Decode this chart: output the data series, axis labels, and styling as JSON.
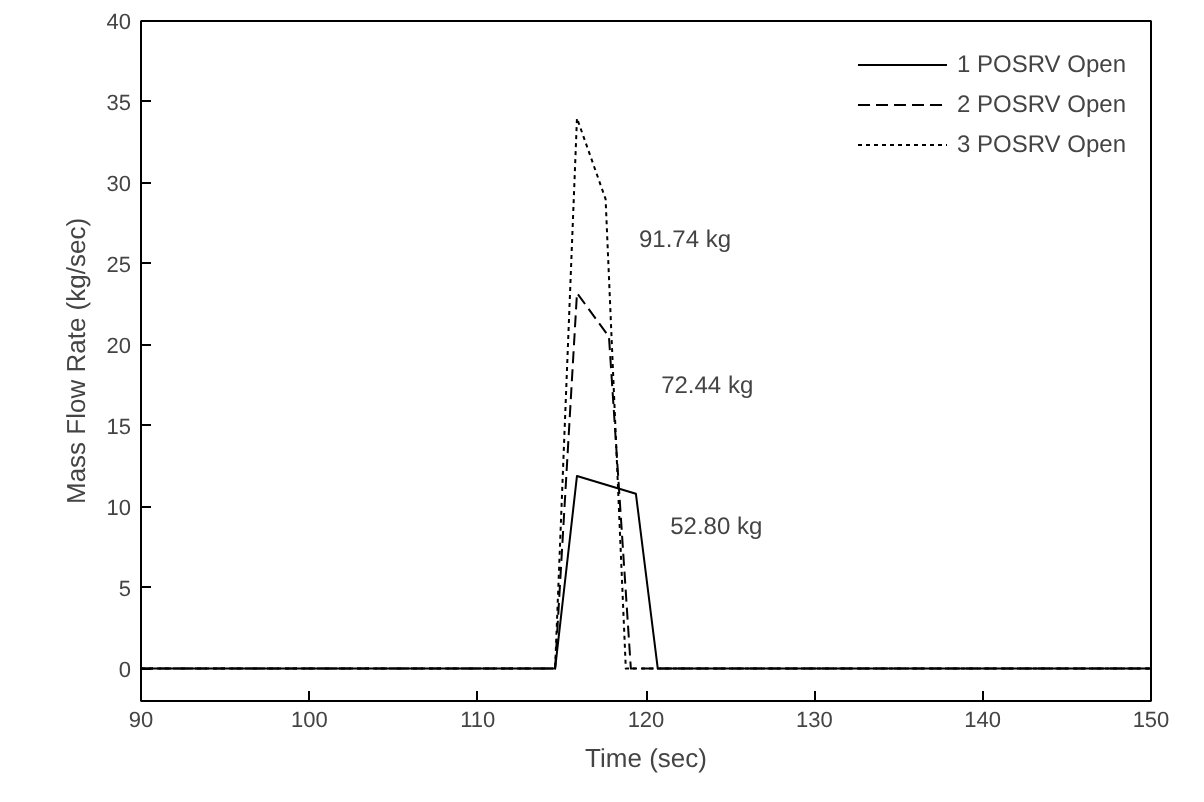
{
  "chart_data": {
    "type": "line",
    "xlabel": "Time (sec)",
    "ylabel": "Mass Flow Rate (kg/sec)",
    "xlim": [
      90,
      150
    ],
    "ylim": [
      -2,
      40
    ],
    "xticks": [
      90,
      100,
      110,
      120,
      130,
      140,
      150
    ],
    "yticks": [
      0,
      5,
      10,
      15,
      20,
      25,
      30,
      35,
      40
    ],
    "grid": false,
    "legend": "top right",
    "marker": "none",
    "series": [
      {
        "name": "1 POSRV Open",
        "color": "#000000",
        "line_style": "solid",
        "x": [
          90,
          114.6,
          115.9,
          119.4,
          120.7,
          150
        ],
        "values": [
          0,
          0,
          11.9,
          10.8,
          0,
          0
        ]
      },
      {
        "name": "2 POSRV Open",
        "color": "#000000",
        "line_style": "dashed",
        "x": [
          90,
          114.6,
          115.9,
          117.8,
          119.1,
          150
        ],
        "values": [
          0,
          0,
          23.2,
          20.5,
          0,
          0
        ]
      },
      {
        "name": "3 POSRV Open",
        "color": "#000000",
        "line_style": "dotted",
        "x": [
          90,
          114.6,
          115.9,
          117.6,
          118.8,
          150
        ],
        "values": [
          0,
          0,
          34,
          29,
          0,
          0
        ]
      }
    ],
    "annotations": [
      "91.74 kg",
      "72.44 kg",
      "52.80 kg"
    ]
  }
}
